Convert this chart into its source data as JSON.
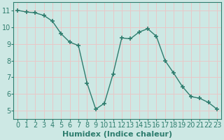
{
  "x": [
    0,
    1,
    2,
    3,
    4,
    5,
    6,
    7,
    8,
    9,
    10,
    11,
    12,
    13,
    14,
    15,
    16,
    17,
    18,
    19,
    20,
    21,
    22,
    23
  ],
  "y": [
    11.0,
    10.9,
    10.85,
    10.7,
    10.35,
    9.6,
    9.1,
    8.9,
    6.65,
    5.1,
    5.45,
    7.2,
    9.35,
    9.3,
    9.7,
    9.9,
    9.45,
    8.0,
    7.25,
    6.45,
    5.85,
    5.75,
    5.5,
    5.1
  ],
  "line_color": "#2e7d6e",
  "marker": "+",
  "marker_size": 5,
  "bg_color": "#cde8e4",
  "grid_color": "#e8c8c8",
  "tick_color": "#2e7d6e",
  "xlabel": "Humidex (Indice chaleur)",
  "xlim": [
    -0.5,
    23.5
  ],
  "ylim": [
    4.5,
    11.5
  ],
  "yticks": [
    5,
    6,
    7,
    8,
    9,
    10,
    11
  ],
  "xticks": [
    0,
    1,
    2,
    3,
    4,
    5,
    6,
    7,
    8,
    9,
    10,
    11,
    12,
    13,
    14,
    15,
    16,
    17,
    18,
    19,
    20,
    21,
    22,
    23
  ],
  "font_size": 7,
  "xlabel_fontsize": 8
}
